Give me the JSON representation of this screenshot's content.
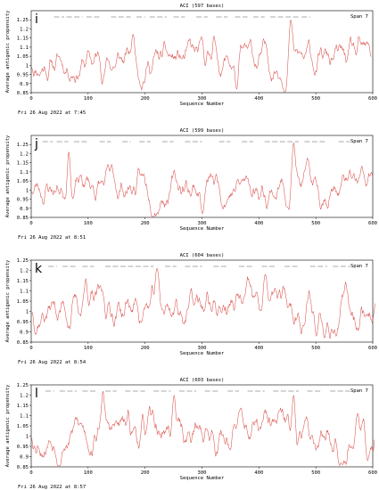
{
  "chart_data": [
    {
      "type": "line",
      "panel_letter": "i",
      "title": "ACI  (597 bases)",
      "xlabel": "Sequence Number",
      "ylabel": "Average antigenic propensity",
      "xlim": [
        0,
        600
      ],
      "ylim": [
        0.85,
        1.3
      ],
      "x_ticks": [
        "0",
        "100",
        "200",
        "300",
        "400",
        "500",
        "600"
      ],
      "y_ticks": [
        "0.85",
        "0.9",
        "0.95",
        "1",
        "1.05",
        "1.1",
        "1.15",
        "1.2",
        "1.25"
      ],
      "legend": "Span 7",
      "timestamp": "Fri 26 Aug 2022 at 7:45",
      "line_color": "#d9534f",
      "seq_length": 597,
      "seed": 11,
      "peaks": [
        {
          "x": 455,
          "y": 1.25
        },
        {
          "x": 178,
          "y": 1.17
        },
        {
          "x": 320,
          "y": 1.16
        },
        {
          "x": 360,
          "y": 0.87
        }
      ],
      "epitope_segments": [
        [
          40,
          58
        ],
        [
          62,
          90
        ],
        [
          97,
          122
        ],
        [
          140,
          175
        ],
        [
          185,
          200
        ],
        [
          208,
          238
        ],
        [
          250,
          270
        ],
        [
          290,
          310
        ],
        [
          325,
          345
        ],
        [
          358,
          380
        ],
        [
          390,
          410
        ],
        [
          420,
          470
        ],
        [
          475,
          490
        ]
      ]
    },
    {
      "type": "line",
      "panel_letter": "j",
      "title": "ACI  (599 bases)",
      "xlabel": "Sequence Number",
      "ylabel": "Average antigenic propensity",
      "xlim": [
        0,
        600
      ],
      "ylim": [
        0.85,
        1.3
      ],
      "x_ticks": [
        "0",
        "100",
        "200",
        "300",
        "400",
        "500",
        "600"
      ],
      "y_ticks": [
        "0.85",
        "0.9",
        "0.95",
        "1",
        "1.05",
        "1.1",
        "1.15",
        "1.2",
        "1.25"
      ],
      "legend": "Span 7",
      "timestamp": "Fri 26 Aug 2022 at 8:51",
      "line_color": "#d9534f",
      "seq_length": 599,
      "seed": 23,
      "peaks": [
        {
          "x": 460,
          "y": 1.26
        },
        {
          "x": 65,
          "y": 1.21
        },
        {
          "x": 300,
          "y": 0.87
        }
      ],
      "epitope_segments": [
        [
          20,
          38
        ],
        [
          45,
          65
        ],
        [
          75,
          100
        ],
        [
          120,
          140
        ],
        [
          160,
          175
        ],
        [
          190,
          210
        ],
        [
          230,
          250
        ],
        [
          270,
          300
        ],
        [
          330,
          350
        ],
        [
          370,
          390
        ],
        [
          410,
          470
        ],
        [
          480,
          520
        ],
        [
          540,
          560
        ]
      ]
    },
    {
      "type": "line",
      "panel_letter": "k",
      "title": "ACI  (604 bases)",
      "xlabel": "Sequence Number",
      "ylabel": "Average antigenic propensity",
      "xlim": [
        0,
        600
      ],
      "ylim": [
        0.85,
        1.25
      ],
      "x_ticks": [
        "0",
        "100",
        "200",
        "300",
        "400",
        "500",
        "600"
      ],
      "y_ticks": [
        "0.85",
        "0.9",
        "0.95",
        "1",
        "1.05",
        "1.1",
        "1.15",
        "1.2",
        "1.25"
      ],
      "legend": "Span 7",
      "timestamp": "Fri 26 Aug 2022 at 8:54",
      "line_color": "#d9534f",
      "seq_length": 604,
      "seed": 37,
      "peaks": [
        {
          "x": 220,
          "y": 1.21
        },
        {
          "x": 410,
          "y": 1.18
        },
        {
          "x": 95,
          "y": 1.16
        },
        {
          "x": 500,
          "y": 0.88
        }
      ],
      "epitope_segments": [
        [
          30,
          45
        ],
        [
          55,
          80
        ],
        [
          90,
          110
        ],
        [
          130,
          215
        ],
        [
          235,
          255
        ],
        [
          270,
          300
        ],
        [
          320,
          345
        ],
        [
          365,
          390
        ],
        [
          405,
          430
        ],
        [
          445,
          470
        ],
        [
          490,
          520
        ],
        [
          530,
          560
        ]
      ]
    },
    {
      "type": "line",
      "panel_letter": "l",
      "title": "ACI  (603 bases)",
      "xlabel": "Sequence Number",
      "ylabel": "Average antigenic propensity",
      "xlim": [
        0,
        600
      ],
      "ylim": [
        0.85,
        1.25
      ],
      "x_ticks": [
        "0",
        "100",
        "200",
        "300",
        "400",
        "500",
        "600"
      ],
      "y_ticks": [
        "0.85",
        "0.9",
        "0.95",
        "1",
        "1.05",
        "1.1",
        "1.15",
        "1.2",
        "1.25"
      ],
      "legend": "Span 7",
      "timestamp": "Fri 26 Aug 2022 at 8:57",
      "line_color": "#d9534f",
      "seq_length": 603,
      "seed": 53,
      "peaks": [
        {
          "x": 125,
          "y": 1.22
        },
        {
          "x": 250,
          "y": 1.2
        },
        {
          "x": 460,
          "y": 1.2
        },
        {
          "x": 590,
          "y": 0.88
        }
      ],
      "epitope_segments": [
        [
          25,
          40
        ],
        [
          50,
          80
        ],
        [
          90,
          115
        ],
        [
          130,
          150
        ],
        [
          165,
          200
        ],
        [
          215,
          245
        ],
        [
          260,
          290
        ],
        [
          305,
          330
        ],
        [
          345,
          365
        ],
        [
          380,
          410
        ],
        [
          425,
          470
        ],
        [
          485,
          510
        ],
        [
          525,
          560
        ]
      ]
    }
  ]
}
